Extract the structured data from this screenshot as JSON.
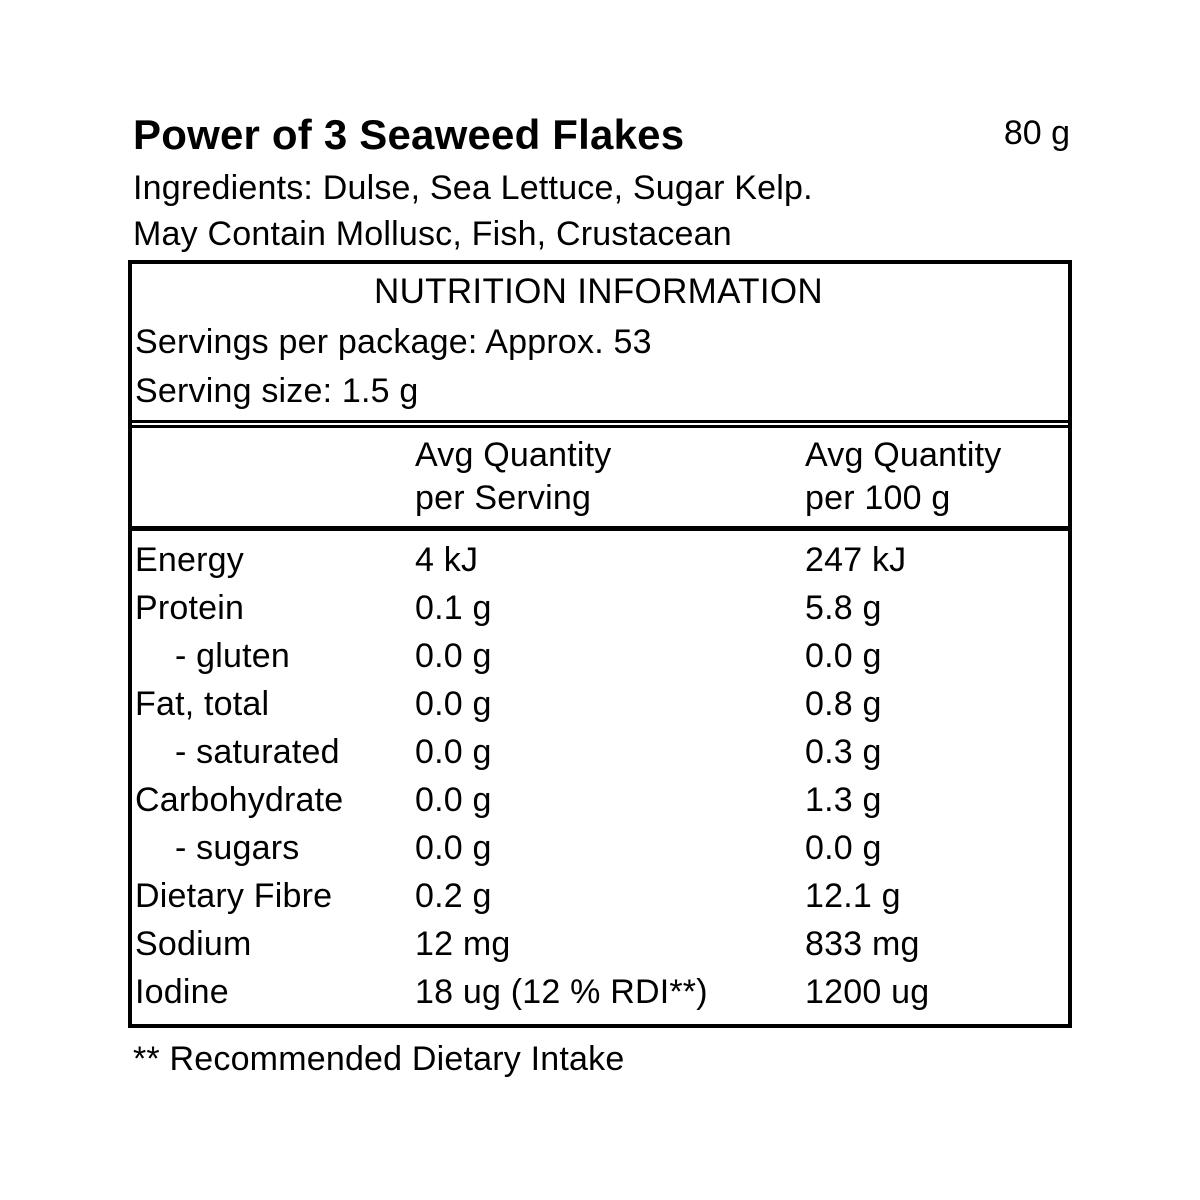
{
  "product": {
    "title": "Power of 3 Seaweed Flakes",
    "net_weight": "80 g",
    "ingredients": "Ingredients: Dulse, Sea Lettuce, Sugar Kelp.",
    "allergen_warning": "May Contain Mollusc, Fish, Crustacean"
  },
  "nutrition_table": {
    "title": "NUTRITION INFORMATION",
    "servings_per_package": "Servings per package: Approx. 53",
    "serving_size": "Serving size: 1.5 g",
    "columns": {
      "per_serving": {
        "line1": "Avg Quantity",
        "line2": "per Serving"
      },
      "per_100g": {
        "line1": "Avg Quantity",
        "line2": "per 100 g"
      }
    },
    "rows": [
      {
        "label": "Energy",
        "per_serving": "4 kJ",
        "per_100g": "247 kJ"
      },
      {
        "label": "Protein",
        "per_serving": "0.1 g",
        "per_100g": "5.8 g"
      },
      {
        "label": "- gluten",
        "per_serving": "0.0 g",
        "per_100g": "0.0 g"
      },
      {
        "label": "Fat, total",
        "per_serving": "0.0 g",
        "per_100g": "0.8 g"
      },
      {
        "label": "- saturated",
        "per_serving": "0.0 g",
        "per_100g": "0.3 g"
      },
      {
        "label": "Carbohydrate",
        "per_serving": "0.0 g",
        "per_100g": "1.3 g"
      },
      {
        "label": "- sugars",
        "per_serving": "0.0 g",
        "per_100g": "0.0 g"
      },
      {
        "label": "Dietary Fibre",
        "per_serving": "0.2 g",
        "per_100g": "12.1 g"
      },
      {
        "label": "Sodium",
        "per_serving": "12 mg",
        "per_100g": "833 mg"
      },
      {
        "label": "Iodine",
        "per_serving": "18 ug (12 % RDI**)",
        "per_100g": "1200 ug"
      }
    ]
  },
  "footnote": "** Recommended Dietary Intake"
}
